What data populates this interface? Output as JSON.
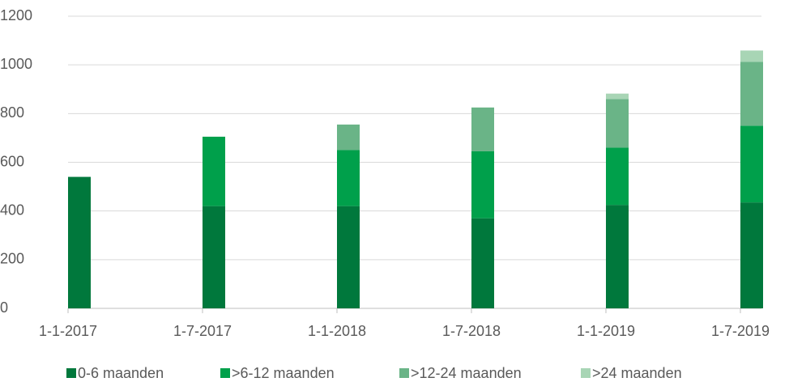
{
  "chart_data": {
    "type": "bar",
    "stacked": true,
    "categories": [
      "1-1-2017",
      "1-7-2017",
      "1-1-2018",
      "1-7-2018",
      "1-1-2019",
      "1-7-2019"
    ],
    "series": [
      {
        "name": "0-6 maanden",
        "color": "#00783c",
        "values": [
          540,
          420,
          420,
          370,
          425,
          435
        ]
      },
      {
        "name": ">6-12 maanden",
        "color": "#00a04b",
        "values": [
          0,
          285,
          230,
          275,
          235,
          315
        ]
      },
      {
        "name": ">12-24 maanden",
        "color": "#6ab487",
        "values": [
          0,
          0,
          105,
          180,
          200,
          263
        ]
      },
      {
        "name": ">24 maanden",
        "color": "#a8d5b5",
        "values": [
          0,
          0,
          0,
          0,
          22,
          46
        ]
      }
    ],
    "ylim": [
      0,
      1200
    ],
    "yticks": [
      0,
      200,
      400,
      600,
      800,
      1000,
      1200
    ],
    "grid": true,
    "legend": "bottom"
  }
}
